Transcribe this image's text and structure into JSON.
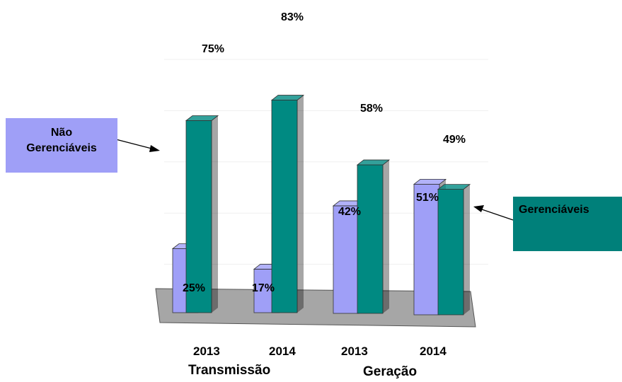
{
  "chart_data": {
    "type": "bar",
    "categories": [
      "2013",
      "2014",
      "2013",
      "2014"
    ],
    "groups": [
      "Transmissão",
      "Geração"
    ],
    "series": [
      {
        "values": [
          25,
          17,
          42,
          51
        ],
        "labels": [
          "25%",
          "17%",
          "42%",
          "51%"
        ]
      },
      {
        "values": [
          75,
          83,
          58,
          49
        ],
        "labels": [
          "75%",
          "83%",
          "58%",
          "49%"
        ]
      }
    ],
    "ylim": [
      0,
      100
    ],
    "colors": {
      "series_1": "#9f9ff7",
      "series_2": "#008a82",
      "floor": "#a6a6a6"
    },
    "callouts": {
      "left": [
        "Não",
        "Gerenciáveis"
      ],
      "right": "Gerenciáveis"
    }
  }
}
